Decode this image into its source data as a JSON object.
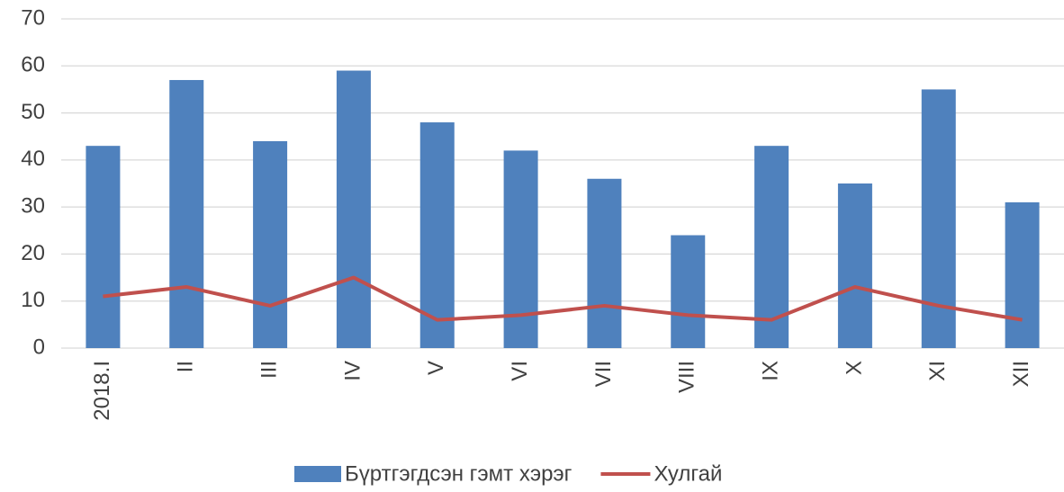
{
  "chart_data": {
    "type": "bar",
    "categories": [
      "2018.I",
      "II",
      "III",
      "IV",
      "V",
      "VI",
      "VII",
      "VIII",
      "IX",
      "X",
      "XI",
      "XII"
    ],
    "series": [
      {
        "name": "Бүртгэгдсэн гэмт хэрэг",
        "type": "bar",
        "color": "#4f81bd",
        "values": [
          43,
          57,
          44,
          59,
          48,
          42,
          36,
          24,
          43,
          35,
          55,
          31
        ]
      },
      {
        "name": "Хулгай",
        "type": "line",
        "color": "#c0504d",
        "values": [
          11,
          13,
          9,
          15,
          6,
          7,
          9,
          7,
          6,
          13,
          9,
          6
        ]
      }
    ],
    "ylim": [
      0,
      70
    ],
    "yticks": [
      0,
      10,
      20,
      30,
      40,
      50,
      60,
      70
    ],
    "grid": true,
    "legend": "bottom"
  }
}
